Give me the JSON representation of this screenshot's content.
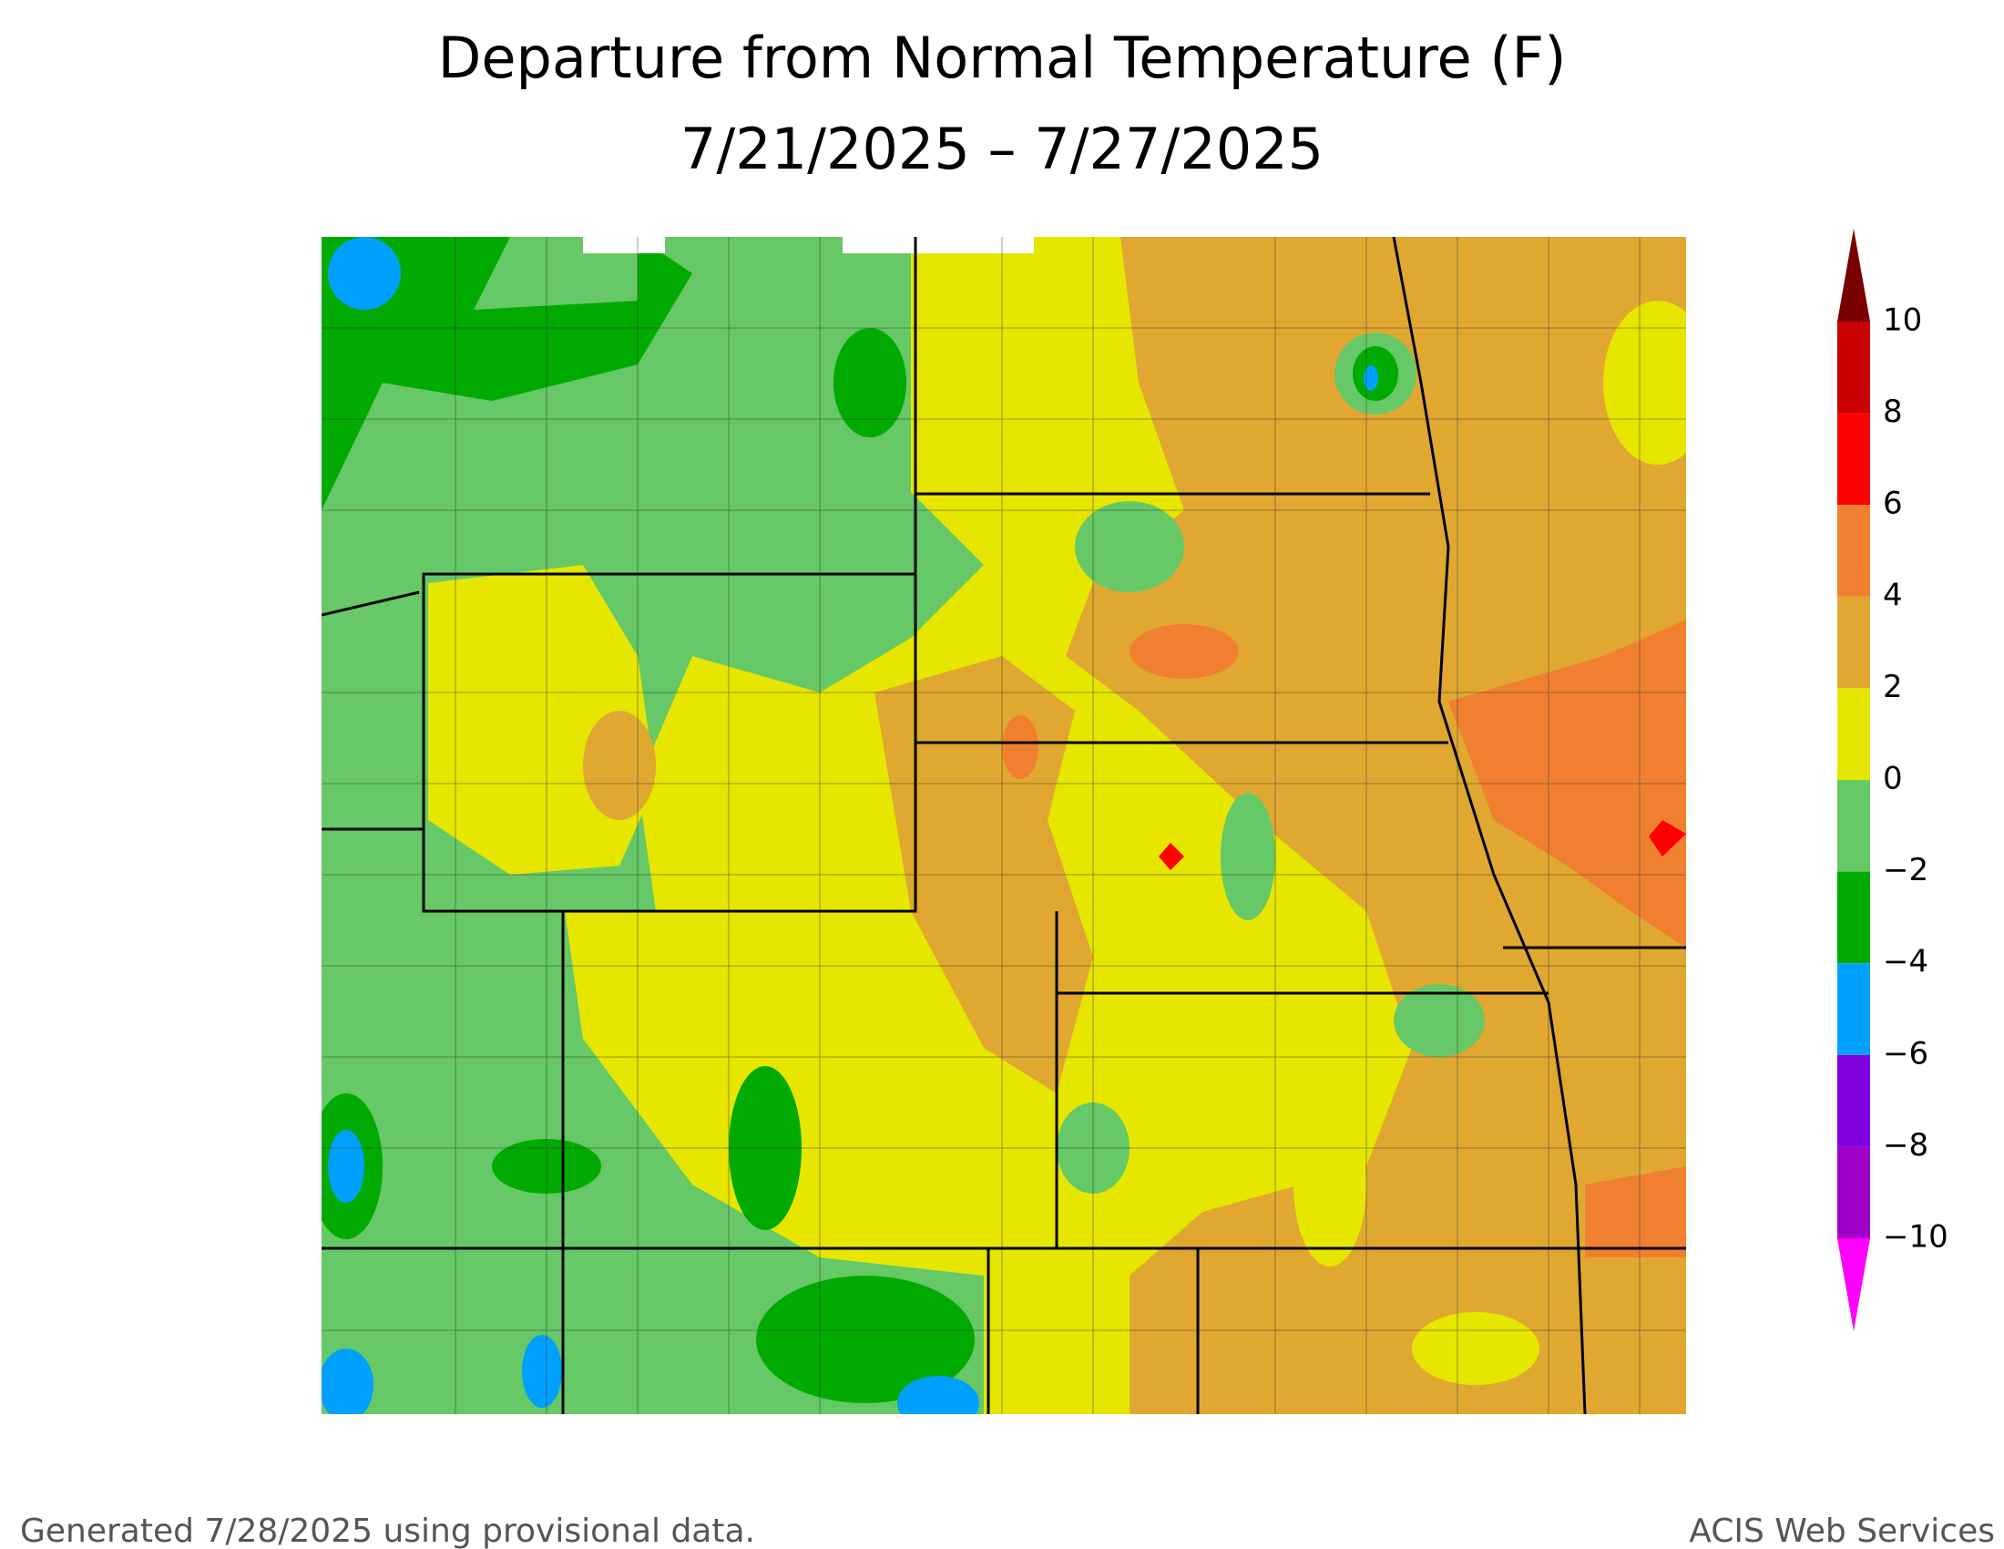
{
  "header": {
    "title": "Departure from Normal Temperature (F)",
    "subtitle": "7/21/2025 – 7/27/2025"
  },
  "legend": {
    "labels": [
      "10",
      "8",
      "6",
      "4",
      "2",
      "0",
      "−2",
      "−4",
      "−6",
      "−8",
      "−10"
    ],
    "colors": [
      "#7a0000",
      "#c80000",
      "#ff0000",
      "#f08030",
      "#e0a830",
      "#e6e600",
      "#66c866",
      "#00aa00",
      "#00a0ff",
      "#8000e0",
      "#a000c8",
      "#ff00ff"
    ]
  },
  "footer": {
    "left": "Generated 7/28/2025 using provisional data.",
    "right": "ACIS Web Services"
  }
}
